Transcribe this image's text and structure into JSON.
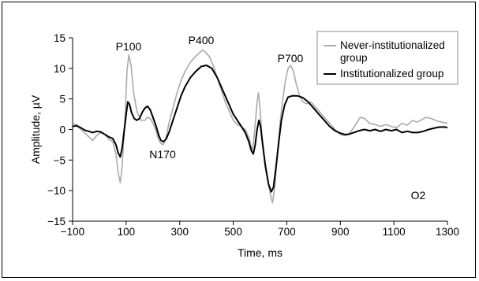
{
  "chart_data": {
    "type": "line",
    "title": "",
    "xlabel": "Time, ms",
    "ylabel": "Amplitude, µV",
    "xlim": [
      -100,
      1300
    ],
    "ylim": [
      -15,
      15
    ],
    "x_ticks": [
      -100,
      100,
      300,
      500,
      700,
      900,
      1100,
      1300
    ],
    "y_ticks": [
      -15,
      -10,
      -5,
      0,
      5,
      10,
      15
    ],
    "grid": false,
    "legend_position": "top-right",
    "legend": {
      "line1": "Never-institutionalized",
      "line2": "group",
      "line3": "Institutionalized group"
    },
    "annotations": {
      "p100": "P100",
      "n170": "N170",
      "p400": "P400",
      "p700": "P700",
      "o2": "O2"
    },
    "series": [
      {
        "key": "never",
        "color": "#aaaaaa",
        "points": [
          [
            -100,
            1.0
          ],
          [
            -85,
            0.8
          ],
          [
            -70,
            0.0
          ],
          [
            -55,
            -0.5
          ],
          [
            -40,
            -1.2
          ],
          [
            -25,
            -1.8
          ],
          [
            -10,
            -1.0
          ],
          [
            5,
            -0.5
          ],
          [
            20,
            -0.8
          ],
          [
            35,
            -1.6
          ],
          [
            50,
            -2.0
          ],
          [
            62,
            -4.0
          ],
          [
            70,
            -7.0
          ],
          [
            78,
            -8.7
          ],
          [
            85,
            -6.0
          ],
          [
            92,
            -1.0
          ],
          [
            98,
            4.0
          ],
          [
            103,
            9.5
          ],
          [
            110,
            12.2
          ],
          [
            118,
            10.5
          ],
          [
            128,
            6.0
          ],
          [
            140,
            3.0
          ],
          [
            155,
            1.5
          ],
          [
            170,
            1.5
          ],
          [
            180,
            2.0
          ],
          [
            190,
            1.8
          ],
          [
            200,
            1.0
          ],
          [
            210,
            0.0
          ],
          [
            220,
            -1.5
          ],
          [
            228,
            -2.2
          ],
          [
            238,
            -2.5
          ],
          [
            248,
            -1.5
          ],
          [
            260,
            1.0
          ],
          [
            275,
            3.5
          ],
          [
            290,
            6.0
          ],
          [
            305,
            8.0
          ],
          [
            320,
            9.5
          ],
          [
            340,
            11.0
          ],
          [
            360,
            12.0
          ],
          [
            375,
            12.6
          ],
          [
            385,
            13.0
          ],
          [
            395,
            12.7
          ],
          [
            410,
            12.0
          ],
          [
            425,
            10.5
          ],
          [
            440,
            8.5
          ],
          [
            455,
            6.5
          ],
          [
            470,
            4.5
          ],
          [
            485,
            3.0
          ],
          [
            500,
            1.5
          ],
          [
            515,
            0.8
          ],
          [
            530,
            0.5
          ],
          [
            545,
            0.0
          ],
          [
            560,
            -1.5
          ],
          [
            570,
            -3.5
          ],
          [
            576,
            -2.0
          ],
          [
            582,
            1.0
          ],
          [
            589,
            4.5
          ],
          [
            594,
            6.0
          ],
          [
            600,
            3.5
          ],
          [
            608,
            -1.5
          ],
          [
            618,
            -5.0
          ],
          [
            630,
            -8.5
          ],
          [
            640,
            -11.0
          ],
          [
            647,
            -12.0
          ],
          [
            655,
            -9.5
          ],
          [
            665,
            -4.0
          ],
          [
            675,
            1.0
          ],
          [
            685,
            5.0
          ],
          [
            695,
            8.0
          ],
          [
            705,
            10.0
          ],
          [
            715,
            10.5
          ],
          [
            725,
            9.5
          ],
          [
            735,
            7.5
          ],
          [
            748,
            5.5
          ],
          [
            760,
            4.5
          ],
          [
            775,
            4.2
          ],
          [
            790,
            4.5
          ],
          [
            800,
            4.0
          ],
          [
            820,
            3.0
          ],
          [
            840,
            2.0
          ],
          [
            860,
            1.0
          ],
          [
            880,
            0.0
          ],
          [
            900,
            -0.8
          ],
          [
            915,
            -1.0
          ],
          [
            930,
            -0.8
          ],
          [
            945,
            0.0
          ],
          [
            960,
            1.0
          ],
          [
            975,
            2.0
          ],
          [
            990,
            1.8
          ],
          [
            1010,
            1.0
          ],
          [
            1030,
            0.8
          ],
          [
            1050,
            0.5
          ],
          [
            1070,
            0.8
          ],
          [
            1090,
            0.5
          ],
          [
            1110,
            0.3
          ],
          [
            1130,
            1.0
          ],
          [
            1150,
            0.7
          ],
          [
            1170,
            1.5
          ],
          [
            1185,
            1.2
          ],
          [
            1200,
            1.5
          ],
          [
            1220,
            2.0
          ],
          [
            1240,
            1.8
          ],
          [
            1260,
            1.4
          ],
          [
            1280,
            1.2
          ],
          [
            1300,
            1.0
          ]
        ]
      },
      {
        "key": "inst",
        "color": "#000000",
        "points": [
          [
            -100,
            0.5
          ],
          [
            -85,
            0.6
          ],
          [
            -70,
            0.3
          ],
          [
            -55,
            -0.1
          ],
          [
            -40,
            -0.3
          ],
          [
            -25,
            -0.5
          ],
          [
            -10,
            -0.3
          ],
          [
            5,
            -0.4
          ],
          [
            20,
            -0.8
          ],
          [
            35,
            -1.2
          ],
          [
            50,
            -1.5
          ],
          [
            62,
            -2.5
          ],
          [
            70,
            -3.8
          ],
          [
            78,
            -4.5
          ],
          [
            85,
            -3.0
          ],
          [
            92,
            -0.5
          ],
          [
            100,
            2.5
          ],
          [
            106,
            4.5
          ],
          [
            112,
            4.2
          ],
          [
            120,
            2.8
          ],
          [
            130,
            1.8
          ],
          [
            140,
            1.5
          ],
          [
            150,
            1.8
          ],
          [
            160,
            2.8
          ],
          [
            170,
            3.5
          ],
          [
            180,
            3.8
          ],
          [
            190,
            3.2
          ],
          [
            200,
            2.0
          ],
          [
            212,
            0.5
          ],
          [
            222,
            -1.0
          ],
          [
            230,
            -1.8
          ],
          [
            240,
            -2.0
          ],
          [
            250,
            -1.5
          ],
          [
            260,
            -0.5
          ],
          [
            275,
            1.5
          ],
          [
            290,
            3.5
          ],
          [
            305,
            5.5
          ],
          [
            320,
            7.0
          ],
          [
            340,
            8.5
          ],
          [
            360,
            9.5
          ],
          [
            380,
            10.3
          ],
          [
            400,
            10.5
          ],
          [
            420,
            10.0
          ],
          [
            440,
            8.5
          ],
          [
            455,
            7.0
          ],
          [
            470,
            5.5
          ],
          [
            485,
            4.0
          ],
          [
            500,
            2.5
          ],
          [
            515,
            1.5
          ],
          [
            530,
            0.5
          ],
          [
            545,
            -0.5
          ],
          [
            558,
            -2.0
          ],
          [
            568,
            -3.5
          ],
          [
            575,
            -4.0
          ],
          [
            582,
            -2.5
          ],
          [
            589,
            0.0
          ],
          [
            596,
            1.5
          ],
          [
            602,
            0.5
          ],
          [
            610,
            -2.5
          ],
          [
            620,
            -6.0
          ],
          [
            632,
            -9.0
          ],
          [
            642,
            -10.2
          ],
          [
            650,
            -9.5
          ],
          [
            660,
            -6.0
          ],
          [
            670,
            -2.0
          ],
          [
            680,
            1.5
          ],
          [
            692,
            4.0
          ],
          [
            705,
            5.3
          ],
          [
            720,
            5.5
          ],
          [
            740,
            5.5
          ],
          [
            760,
            5.2
          ],
          [
            780,
            4.5
          ],
          [
            800,
            3.5
          ],
          [
            820,
            2.5
          ],
          [
            840,
            1.5
          ],
          [
            860,
            0.5
          ],
          [
            880,
            -0.2
          ],
          [
            900,
            -0.6
          ],
          [
            915,
            -0.8
          ],
          [
            930,
            -0.8
          ],
          [
            950,
            -0.5
          ],
          [
            970,
            -0.2
          ],
          [
            990,
            0.0
          ],
          [
            1010,
            -0.2
          ],
          [
            1030,
            0.0
          ],
          [
            1050,
            -0.3
          ],
          [
            1070,
            0.0
          ],
          [
            1090,
            -0.2
          ],
          [
            1110,
            0.0
          ],
          [
            1130,
            -0.5
          ],
          [
            1150,
            -0.3
          ],
          [
            1170,
            -0.5
          ],
          [
            1190,
            -0.5
          ],
          [
            1210,
            -0.3
          ],
          [
            1230,
            0.0
          ],
          [
            1250,
            0.2
          ],
          [
            1270,
            0.4
          ],
          [
            1290,
            0.4
          ],
          [
            1300,
            0.3
          ]
        ]
      }
    ]
  }
}
